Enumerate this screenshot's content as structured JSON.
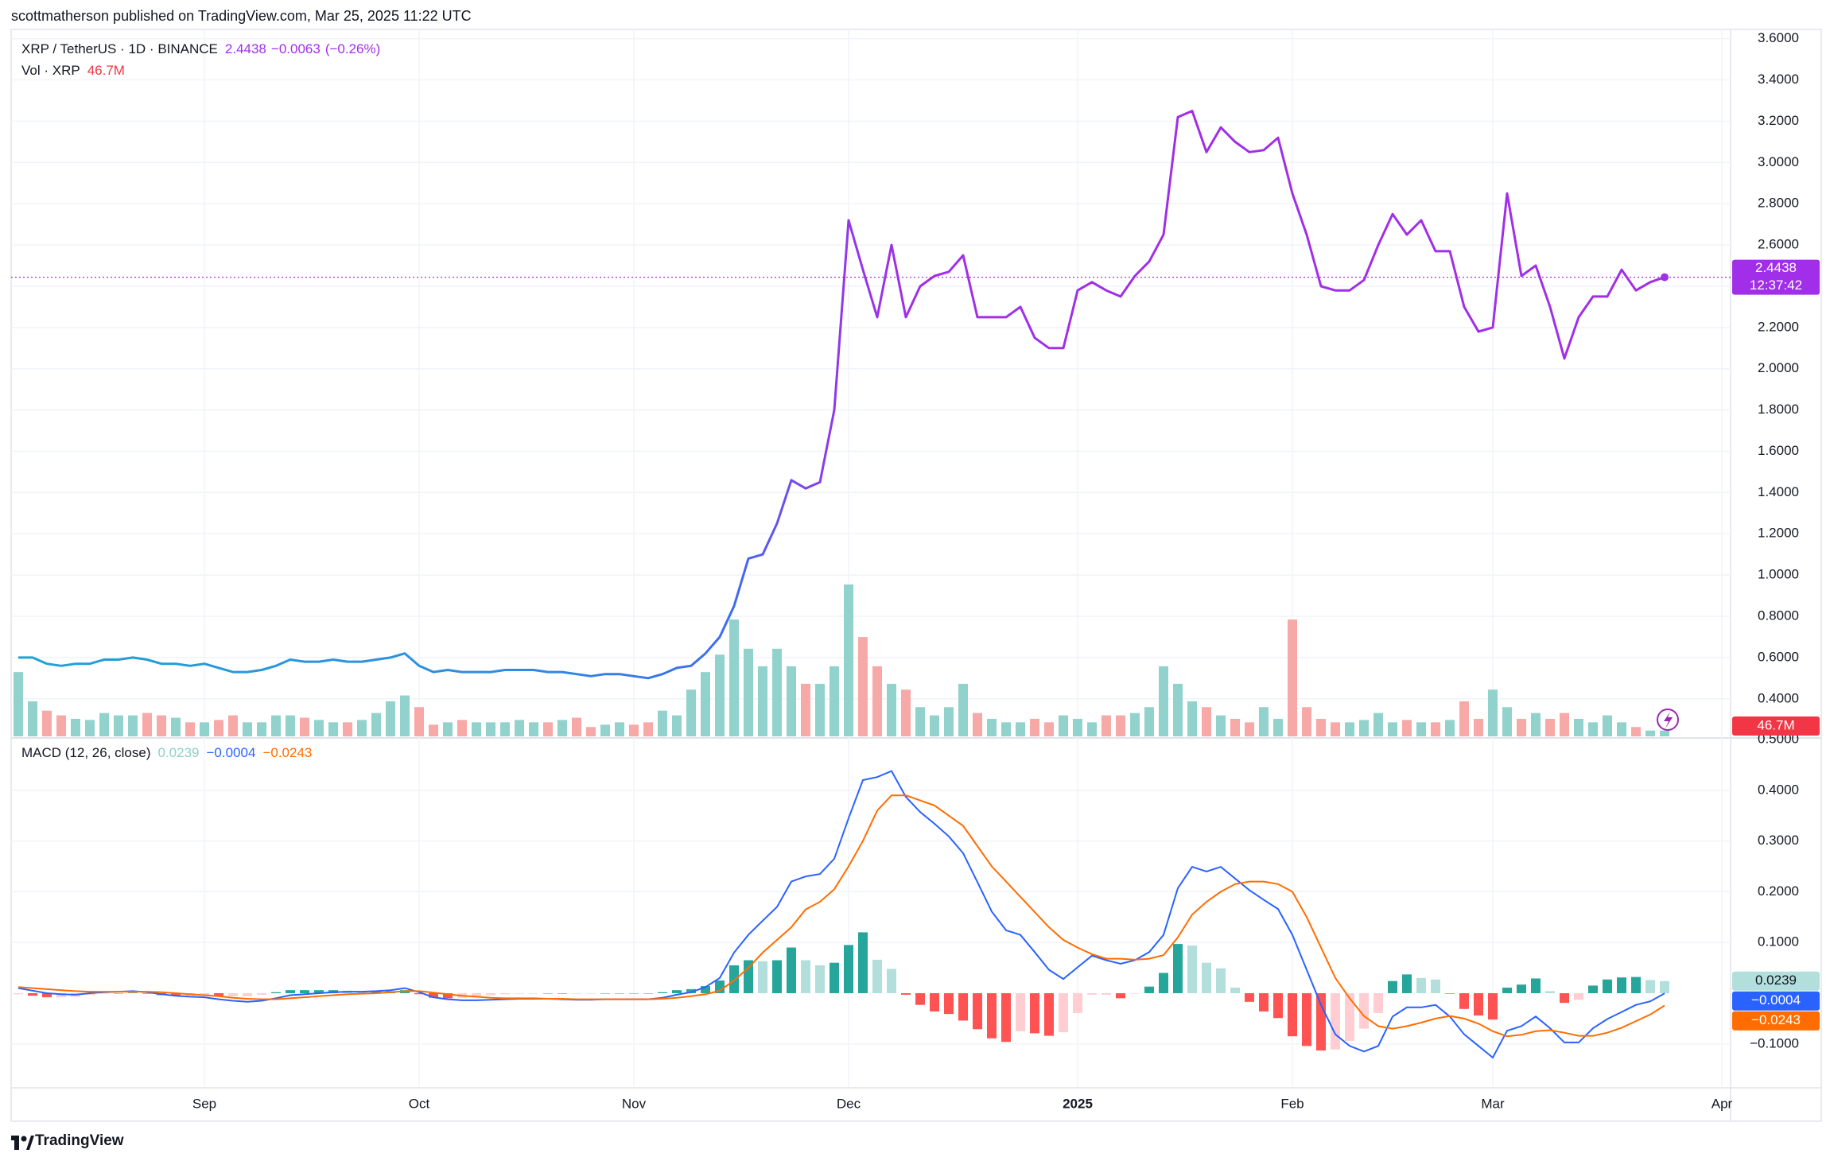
{
  "header": "scottmatherson published on TradingView.com, Mar 25, 2025 11:22 UTC",
  "footer": "TradingView",
  "chart_data": [
    {
      "type": "line",
      "title": "XRP / TetherUS · 1D · BINANCE",
      "change": "−0.0063",
      "change_pct": "(−0.26%)",
      "last_time": "12:37:42",
      "categories": [
        null,
        null,
        null,
        null,
        null,
        null,
        null,
        null,
        null,
        null,
        null,
        null,
        null,
        "Sep",
        null,
        null,
        null,
        null,
        null,
        null,
        null,
        null,
        null,
        null,
        null,
        null,
        null,
        null,
        "Oct",
        null,
        null,
        null,
        null,
        null,
        null,
        null,
        null,
        null,
        null,
        null,
        null,
        null,
        null,
        "Nov",
        null,
        null,
        null,
        null,
        null,
        null,
        null,
        null,
        null,
        null,
        null,
        null,
        null,
        null,
        "Dec",
        null,
        null,
        null,
        null,
        null,
        null,
        null,
        null,
        null,
        null,
        null,
        null,
        null,
        null,
        null,
        "2025",
        null,
        null,
        null,
        null,
        null,
        null,
        null,
        null,
        null,
        null,
        null,
        null,
        null,
        null,
        "Feb",
        null,
        null,
        null,
        null,
        null,
        null,
        null,
        null,
        null,
        null,
        null,
        null,
        null,
        "Mar",
        null,
        null,
        null,
        null,
        null,
        null,
        null,
        null,
        null,
        null,
        null,
        null,
        null,
        null,
        null,
        "Apr",
        null
      ],
      "series": [
        {
          "colors": [
            "#1fa3d8",
            "#2f8ae0",
            "#3d6cf0",
            "#8a3bee",
            "#a12ee8"
          ],
          "values": [
            0.6,
            0.6,
            0.57,
            0.56,
            0.57,
            0.57,
            0.59,
            0.59,
            0.6,
            0.59,
            0.57,
            0.57,
            0.56,
            0.57,
            0.55,
            0.53,
            0.53,
            0.54,
            0.56,
            0.59,
            0.58,
            0.58,
            0.59,
            0.58,
            0.58,
            0.59,
            0.6,
            0.62,
            0.56,
            0.53,
            0.54,
            0.53,
            0.53,
            0.53,
            0.54,
            0.54,
            0.54,
            0.53,
            0.53,
            0.52,
            0.51,
            0.52,
            0.52,
            0.51,
            0.5,
            0.52,
            0.55,
            0.56,
            0.62,
            0.7,
            0.85,
            1.08,
            1.1,
            1.25,
            1.46,
            1.42,
            1.45,
            1.8,
            2.72,
            2.48,
            2.25,
            2.6,
            2.25,
            2.4,
            2.45,
            2.47,
            2.55,
            2.25,
            2.25,
            2.25,
            2.3,
            2.15,
            2.1,
            2.1,
            2.38,
            2.42,
            2.38,
            2.35,
            2.45,
            2.52,
            2.65,
            3.22,
            3.25,
            3.05,
            3.17,
            3.1,
            3.05,
            3.06,
            3.12,
            2.85,
            2.65,
            2.4,
            2.38,
            2.38,
            2.43,
            2.6,
            2.75,
            2.65,
            2.72,
            2.57,
            2.57,
            2.3,
            2.18,
            2.2,
            2.85,
            2.45,
            2.5,
            2.3,
            2.05,
            2.25,
            2.35,
            2.35,
            2.48,
            2.38,
            2.42,
            2.4438,
            null,
            null,
            null,
            null,
            null
          ]
        }
      ],
      "volume": {
        "name": "Vol · XRP",
        "last_label": "46.7M",
        "up_color": "#92d2cc",
        "down_color": "#f7a9a7",
        "label_color": "#f23645",
        "values": [
          517,
          282,
          207,
          169,
          141,
          132,
          188,
          169,
          169,
          188,
          169,
          150,
          113,
          113,
          132,
          169,
          113,
          113,
          169,
          169,
          150,
          132,
          113,
          113,
          132,
          188,
          282,
          329,
          235,
          94,
          113,
          132,
          113,
          113,
          113,
          132,
          113,
          113,
          132,
          150,
          75,
          94,
          113,
          94,
          113,
          207,
          169,
          376,
          517,
          658,
          940,
          705,
          564,
          705,
          564,
          423,
          423,
          564,
          1222,
          799,
          564,
          423,
          376,
          235,
          169,
          235,
          423,
          188,
          141,
          113,
          113,
          141,
          113,
          169,
          141,
          113,
          169,
          169,
          188,
          235,
          564,
          423,
          282,
          235,
          169,
          141,
          113,
          235,
          141,
          940,
          235,
          141,
          113,
          113,
          132,
          188,
          113,
          132,
          113,
          113,
          132,
          282,
          141,
          376,
          235,
          141,
          188,
          141,
          188,
          141,
          113,
          169,
          113,
          75,
          47,
          46.7,
          null,
          null,
          null,
          null,
          null
        ]
      },
      "ylim": [
        0.218,
        3.645
      ],
      "yticks": [
        {
          "value": 0.4,
          "label": "0.4000"
        },
        {
          "value": 0.6,
          "label": "0.6000"
        },
        {
          "value": 0.8,
          "label": "0.8000"
        },
        {
          "value": 1.0,
          "label": "1.0000"
        },
        {
          "value": 1.2,
          "label": "1.2000"
        },
        {
          "value": 1.4,
          "label": "1.4000"
        },
        {
          "value": 1.6,
          "label": "1.6000"
        },
        {
          "value": 1.8,
          "label": "1.8000"
        },
        {
          "value": 2.0,
          "label": "2.0000"
        },
        {
          "value": 2.2,
          "label": "2.2000"
        },
        {
          "value": 2.4,
          "label": "2.4000"
        },
        {
          "value": 2.6,
          "label": "2.6000"
        },
        {
          "value": 2.8,
          "label": "2.8000"
        },
        {
          "value": 3.0,
          "label": "3.0000"
        },
        {
          "value": 3.2,
          "label": "3.2000"
        },
        {
          "value": 3.4,
          "label": "3.4000"
        },
        {
          "value": 3.6,
          "label": "3.6000"
        }
      ],
      "grid": true
    },
    {
      "type": "macd",
      "title": "MACD (12, 26, close)",
      "histogram": {
        "last_label": "0.0239",
        "colors": [
          "#26a69a",
          "#b2dfdb",
          "#ff5252",
          "#ffcdd2"
        ],
        "label_color": "#8fcfc8",
        "values": [
          -0.002,
          -0.005,
          -0.008,
          -0.008,
          -0.007,
          -0.003,
          -0.001,
          0,
          0.001,
          -0.001,
          -0.004,
          -0.005,
          -0.005,
          -0.004,
          -0.006,
          -0.006,
          -0.006,
          -0.003,
          0.002,
          0.006,
          0.006,
          0.006,
          0.006,
          0.005,
          0.004,
          0.004,
          0.004,
          0.006,
          -0.002,
          -0.009,
          -0.01,
          -0.009,
          -0.007,
          -0.004,
          -0.002,
          -0.001,
          -0.001,
          0,
          -0.001,
          -0.001,
          -0.001,
          0,
          0,
          0,
          0,
          0.002,
          0.006,
          0.008,
          0.014,
          0.025,
          0.055,
          0.065,
          0.063,
          0.065,
          0.09,
          0.065,
          0.055,
          0.06,
          0.095,
          0.12,
          0.066,
          0.048,
          -0.003,
          -0.023,
          -0.036,
          -0.041,
          -0.054,
          -0.071,
          -0.089,
          -0.096,
          -0.075,
          -0.079,
          -0.084,
          -0.077,
          -0.039,
          -0.003,
          -0.003,
          -0.01,
          -0.001,
          0.013,
          0.04,
          0.097,
          0.094,
          0.06,
          0.049,
          0.011,
          -0.017,
          -0.036,
          -0.049,
          -0.085,
          -0.104,
          -0.113,
          -0.111,
          -0.094,
          -0.07,
          -0.039,
          0.024,
          0.037,
          0.03,
          0.027,
          -0.001,
          -0.031,
          -0.044,
          -0.052,
          0.011,
          0.017,
          0.029,
          0.004,
          -0.019,
          -0.013,
          0.015,
          0.027,
          0.031,
          0.032,
          0.026,
          0.0239,
          null,
          null,
          null,
          null,
          null
        ]
      },
      "macd": {
        "last_label": "−0.0004",
        "color": "#2962ff",
        "values": [
          0.01,
          0.005,
          0,
          -0.002,
          -0.003,
          0,
          0.002,
          0.003,
          0.004,
          0.002,
          -0.002,
          -0.005,
          -0.007,
          -0.008,
          -0.012,
          -0.015,
          -0.017,
          -0.015,
          -0.01,
          -0.004,
          -0.002,
          0,
          0.002,
          0.003,
          0.003,
          0.004,
          0.006,
          0.01,
          0.002,
          -0.008,
          -0.012,
          -0.014,
          -0.014,
          -0.013,
          -0.012,
          -0.011,
          -0.011,
          -0.011,
          -0.012,
          -0.013,
          -0.013,
          -0.012,
          -0.012,
          -0.012,
          -0.012,
          -0.009,
          -0.003,
          0.002,
          0.012,
          0.03,
          0.08,
          0.115,
          0.143,
          0.17,
          0.22,
          0.23,
          0.235,
          0.265,
          0.345,
          0.42,
          0.426,
          0.438,
          0.387,
          0.357,
          0.334,
          0.309,
          0.276,
          0.219,
          0.161,
          0.124,
          0.115,
          0.081,
          0.046,
          0.028,
          0.051,
          0.074,
          0.065,
          0.058,
          0.065,
          0.081,
          0.115,
          0.207,
          0.249,
          0.24,
          0.249,
          0.226,
          0.203,
          0.184,
          0.166,
          0.115,
          0.046,
          -0.023,
          -0.081,
          -0.104,
          -0.115,
          -0.104,
          -0.046,
          -0.028,
          -0.028,
          -0.023,
          -0.046,
          -0.081,
          -0.104,
          -0.127,
          -0.074,
          -0.065,
          -0.046,
          -0.069,
          -0.097,
          -0.097,
          -0.069,
          -0.051,
          -0.037,
          -0.023,
          -0.016,
          -0.0004,
          null,
          null,
          null,
          null,
          null
        ]
      },
      "signal": {
        "last_label": "−0.0243",
        "color": "#ff6d00",
        "values": [
          0.012,
          0.01,
          0.008,
          0.006,
          0.004,
          0.003,
          0.003,
          0.003,
          0.003,
          0.003,
          0.002,
          0,
          -0.002,
          -0.004,
          -0.006,
          -0.009,
          -0.011,
          -0.012,
          -0.012,
          -0.01,
          -0.008,
          -0.006,
          -0.004,
          -0.002,
          -0.001,
          0,
          0.002,
          0.004,
          0.004,
          0.001,
          -0.002,
          -0.005,
          -0.007,
          -0.009,
          -0.01,
          -0.01,
          -0.01,
          -0.011,
          -0.011,
          -0.012,
          -0.012,
          -0.012,
          -0.012,
          -0.012,
          -0.012,
          -0.011,
          -0.009,
          -0.006,
          -0.002,
          0.005,
          0.025,
          0.05,
          0.08,
          0.105,
          0.13,
          0.165,
          0.18,
          0.205,
          0.25,
          0.3,
          0.36,
          0.39,
          0.39,
          0.38,
          0.37,
          0.35,
          0.33,
          0.29,
          0.25,
          0.22,
          0.19,
          0.16,
          0.13,
          0.105,
          0.09,
          0.077,
          0.068,
          0.068,
          0.066,
          0.068,
          0.075,
          0.11,
          0.155,
          0.18,
          0.2,
          0.215,
          0.22,
          0.22,
          0.215,
          0.2,
          0.15,
          0.09,
          0.03,
          -0.01,
          -0.045,
          -0.065,
          -0.07,
          -0.065,
          -0.058,
          -0.05,
          -0.045,
          -0.05,
          -0.06,
          -0.075,
          -0.085,
          -0.082,
          -0.075,
          -0.073,
          -0.078,
          -0.084,
          -0.084,
          -0.078,
          -0.068,
          -0.055,
          -0.042,
          -0.0243,
          null,
          null,
          null,
          null,
          null
        ]
      },
      "ylim": [
        -0.185,
        0.5
      ],
      "yticks": [
        {
          "value": -0.1,
          "label": "−0.1000"
        },
        {
          "value": 0.1,
          "label": "0.1000"
        },
        {
          "value": 0.2,
          "label": "0.2000"
        },
        {
          "value": 0.3,
          "label": "0.3000"
        },
        {
          "value": 0.4,
          "label": "0.4000"
        },
        {
          "value": 0.5,
          "label": "0.5000"
        }
      ],
      "grid": true
    }
  ]
}
